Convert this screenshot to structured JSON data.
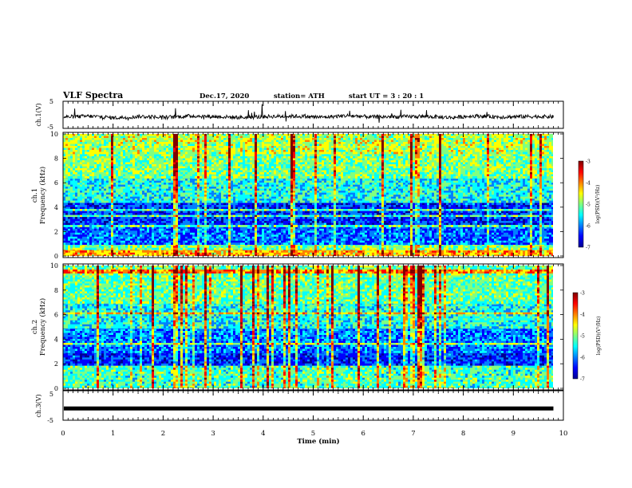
{
  "header": {
    "title": "VLF Spectra",
    "date": "Dec.17, 2020",
    "station": "station= ATH",
    "start": "start  UT =   3 : 20 : 1"
  },
  "colors": {
    "colormap": [
      "#000090",
      "#0000ff",
      "#0080ff",
      "#00ffff",
      "#80ff80",
      "#ffff00",
      "#ff8000",
      "#ff0000",
      "#800000"
    ],
    "trace": "#000000"
  },
  "chart_data": [
    {
      "type": "line",
      "panel": "ch1-waveform",
      "ylabel": "ch.1(V)",
      "yticks": [
        "5",
        "-5"
      ],
      "ylim": [
        -5,
        5
      ],
      "xlim": [
        0,
        10
      ],
      "series": [
        {
          "values": [
            -0.8,
            -0.5,
            -1.1,
            -0.6,
            -0.9,
            -0.4,
            -0.7,
            -1.0,
            -0.6,
            -0.5,
            -0.9,
            -0.3,
            -0.8,
            -0.7,
            -0.6,
            -1.0,
            -0.4,
            -0.8,
            -0.6,
            -0.7
          ]
        }
      ]
    },
    {
      "type": "heatmap",
      "panel": "ch1-spectrogram",
      "ylabel": "ch.1\nFrequency (kHz)",
      "ylabel_line1": "ch.1",
      "ylabel_line2": "Frequency  (kHz)",
      "yticks": [
        "0",
        "2",
        "4",
        "6",
        "8",
        "10"
      ],
      "ylim": [
        0,
        10
      ],
      "xlim": [
        0,
        9.8
      ],
      "colorbar": {
        "label": "log(PSD)(V²/Hz)",
        "ticks": [
          "-3",
          "-4",
          "-5",
          "-6",
          "-7"
        ],
        "range": [
          -7,
          -3
        ]
      },
      "frequency_bands": [
        {
          "from": 0.0,
          "to": 0.6,
          "level": -4.3
        },
        {
          "from": 0.6,
          "to": 1.0,
          "level": -5.0
        },
        {
          "from": 1.0,
          "to": 2.4,
          "level": -6.0
        },
        {
          "from": 2.4,
          "to": 4.5,
          "level": -6.2
        },
        {
          "from": 4.5,
          "to": 6.5,
          "level": -5.4
        },
        {
          "from": 6.5,
          "to": 8.5,
          "level": -5.0
        },
        {
          "from": 8.5,
          "to": 10.0,
          "level": -4.8
        }
      ]
    },
    {
      "type": "heatmap",
      "panel": "ch2-spectrogram",
      "ylabel": "ch.2\nFrequency (kHz)",
      "ylabel_line1": "ch.2",
      "ylabel_line2": "Frequency  (kHz)",
      "yticks": [
        "0",
        "2",
        "4",
        "6",
        "8",
        "10"
      ],
      "ylim": [
        0,
        10
      ],
      "xlim": [
        0,
        9.8
      ],
      "colorbar": {
        "label": "log(PSD)(V²/Hz)",
        "ticks": [
          "-3",
          "-4",
          "-5",
          "-6",
          "-7"
        ],
        "range": [
          -7,
          -3
        ]
      },
      "frequency_bands": [
        {
          "from": 0.0,
          "to": 2.0,
          "level": -5.2
        },
        {
          "from": 2.0,
          "to": 3.0,
          "level": -6.2
        },
        {
          "from": 3.0,
          "to": 5.0,
          "level": -5.9
        },
        {
          "from": 5.0,
          "to": 7.0,
          "level": -5.4
        },
        {
          "from": 7.0,
          "to": 10.0,
          "level": -5.1
        }
      ]
    },
    {
      "type": "line",
      "panel": "ch3-waveform",
      "ylabel": "ch.3(V)",
      "yticks": [
        "5",
        "-5"
      ],
      "ylim": [
        -5,
        5
      ],
      "xlim": [
        0,
        10
      ],
      "series": [
        {
          "values": [
            -1.0,
            -1.0,
            -1.0,
            -1.0,
            -1.0,
            -1.0,
            -1.0,
            -1.0,
            -1.0,
            -1.0
          ]
        }
      ]
    }
  ],
  "xaxis": {
    "label": "Time  (min)",
    "ticks": [
      "0",
      "1",
      "2",
      "3",
      "4",
      "5",
      "6",
      "7",
      "8",
      "9",
      "10"
    ],
    "range": [
      0,
      10
    ]
  }
}
